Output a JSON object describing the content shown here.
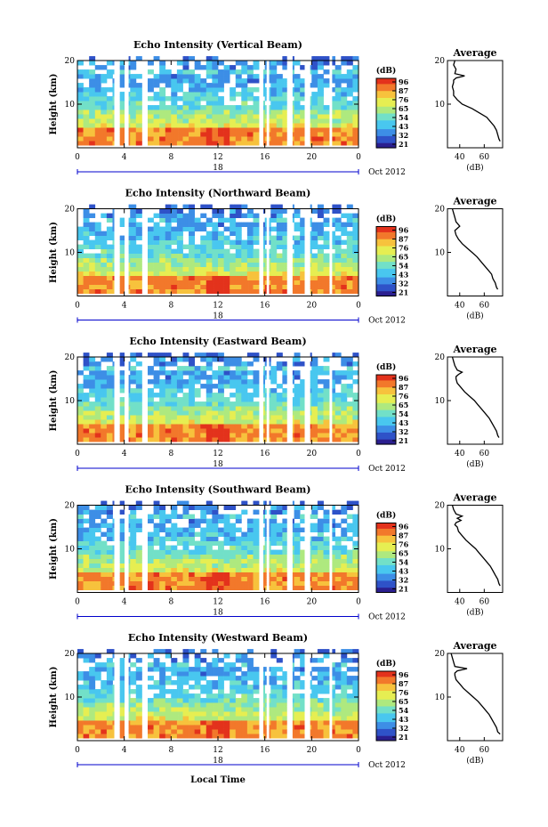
{
  "figure": {
    "common_xlabel": "Local Time",
    "colorbar_unit": "(dB)",
    "colorbar_ticks": [
      "96",
      "87",
      "76",
      "65",
      "54",
      "43",
      "32",
      "21"
    ],
    "date_label": "Oct 2012",
    "average_title": "Average",
    "average_xlabel": "(dB)",
    "ylabel": "Height (km)",
    "x_tick_labels": [
      "0",
      "4",
      "8",
      "12",
      "16",
      "20",
      "0"
    ],
    "y_tick_labels": [
      "10",
      "20"
    ],
    "colors": {
      "scale": [
        "#2b1f8f",
        "#2f52c8",
        "#3d8ee6",
        "#49c7ef",
        "#72e0c8",
        "#aee97f",
        "#e6ee52",
        "#f7c23d",
        "#f2782b",
        "#e3321c"
      ]
    }
  },
  "chart_data": [
    {
      "type": "heatmap",
      "title": "Echo Intensity (Vertical Beam)",
      "day_label": "18",
      "x_range_hours": [
        0,
        24
      ],
      "y_range_km": [
        0,
        20
      ],
      "z_range_db": [
        21,
        96
      ],
      "avg_profile": {
        "xlim_db": [
          30,
          75
        ],
        "xticks": [
          "40",
          "60"
        ],
        "height_km": [
          20,
          19,
          18,
          17,
          16.5,
          16,
          15.5,
          15,
          14,
          13,
          12,
          11,
          10,
          9,
          8,
          7,
          6,
          5,
          4,
          3,
          2,
          1.5
        ],
        "db": [
          36,
          35,
          37,
          36,
          44,
          37,
          35,
          35,
          34,
          35,
          35,
          38,
          42,
          50,
          56,
          62,
          65,
          68,
          70,
          71,
          72,
          73
        ]
      }
    },
    {
      "type": "heatmap",
      "title": "Echo Intensity (Northward Beam)",
      "day_label": "18",
      "x_range_hours": [
        0,
        24
      ],
      "y_range_km": [
        0,
        20
      ],
      "z_range_db": [
        21,
        96
      ],
      "avg_profile": {
        "xlim_db": [
          30,
          75
        ],
        "xticks": [
          "40",
          "60"
        ],
        "height_km": [
          20,
          19,
          18,
          17,
          16,
          15.5,
          15,
          14,
          13,
          12,
          11,
          10,
          9,
          8,
          7,
          6,
          5,
          4,
          3,
          2,
          1.5
        ],
        "db": [
          34,
          35,
          36,
          37,
          40,
          38,
          36,
          37,
          39,
          42,
          46,
          50,
          54,
          57,
          60,
          63,
          66,
          67,
          69,
          70,
          71
        ]
      }
    },
    {
      "type": "heatmap",
      "title": "Echo Intensity (Eastward Beam)",
      "day_label": "18",
      "x_range_hours": [
        0,
        24
      ],
      "y_range_km": [
        0,
        20
      ],
      "z_range_db": [
        21,
        96
      ],
      "avg_profile": {
        "xlim_db": [
          30,
          75
        ],
        "xticks": [
          "40",
          "60"
        ],
        "height_km": [
          20,
          19,
          18,
          17,
          16.5,
          16,
          15.5,
          15,
          14,
          13,
          12,
          11,
          10,
          9,
          8,
          7,
          6,
          5,
          4,
          3,
          2,
          1.5
        ],
        "db": [
          34,
          35,
          36,
          38,
          42,
          39,
          37,
          37,
          38,
          41,
          44,
          48,
          52,
          55,
          58,
          61,
          64,
          66,
          68,
          70,
          71,
          72
        ]
      }
    },
    {
      "type": "heatmap",
      "title": "Echo Intensity (Southward Beam)",
      "day_label": "18",
      "x_range_hours": [
        0,
        24
      ],
      "y_range_km": [
        0,
        20
      ],
      "z_range_db": [
        21,
        96
      ],
      "avg_profile": {
        "xlim_db": [
          30,
          75
        ],
        "xticks": [
          "40",
          "60"
        ],
        "height_km": [
          20,
          19,
          18,
          17.5,
          17,
          16.5,
          16,
          15.5,
          15,
          14,
          13,
          12,
          11,
          10,
          9,
          8,
          7,
          6,
          5,
          4,
          3,
          2,
          1.5
        ],
        "db": [
          34,
          35,
          37,
          42,
          38,
          41,
          37,
          36,
          38,
          39,
          42,
          45,
          49,
          53,
          56,
          59,
          62,
          65,
          67,
          69,
          71,
          72,
          73
        ]
      }
    },
    {
      "type": "heatmap",
      "title": "Echo Intensity (Westward Beam)",
      "day_label": "18",
      "x_range_hours": [
        0,
        24
      ],
      "y_range_km": [
        0,
        20
      ],
      "z_range_db": [
        21,
        96
      ],
      "avg_profile": {
        "xlim_db": [
          30,
          75
        ],
        "xticks": [
          "40",
          "60"
        ],
        "height_km": [
          20,
          19,
          18,
          17,
          16.5,
          16,
          15.5,
          15,
          14,
          13,
          12,
          11,
          10,
          9,
          8,
          7,
          6,
          5,
          4,
          3,
          2,
          1.5
        ],
        "db": [
          33,
          34,
          35,
          36,
          46,
          38,
          36,
          36,
          37,
          40,
          43,
          47,
          51,
          55,
          58,
          61,
          64,
          66,
          68,
          70,
          71,
          73
        ]
      }
    }
  ]
}
